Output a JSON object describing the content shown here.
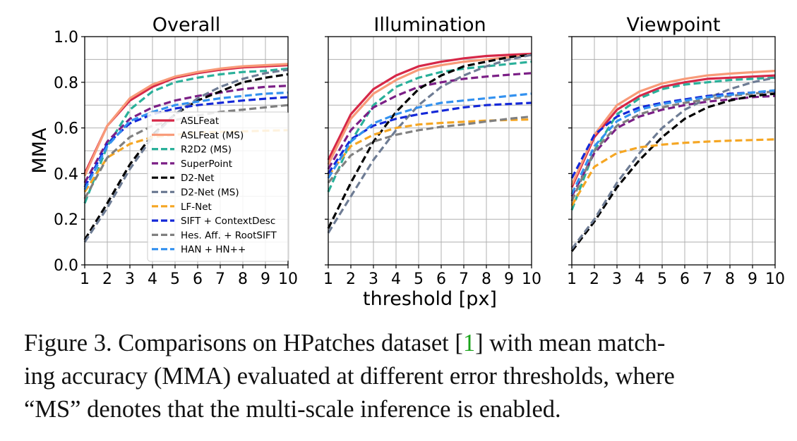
{
  "figure": {
    "xlabel": "threshold [px]",
    "ylabel": "MMA"
  },
  "caption": {
    "line1_a": "Figure 3. Comparisons on HPatches dataset [",
    "cite": "1",
    "line1_b": "] with mean match-",
    "line2": "ing accuracy (MMA) evaluated at different error thresholds, where",
    "line3": "“MS” denotes that the multi-scale inference is enabled."
  },
  "chart_data": [
    {
      "type": "line",
      "title": "Overall",
      "ylim": [
        0,
        1.0
      ],
      "xlim": [
        1,
        10
      ],
      "x": [
        1,
        2,
        3,
        4,
        5,
        6,
        7,
        8,
        9,
        10
      ],
      "xticks": [
        "1",
        "2",
        "3",
        "4",
        "5",
        "6",
        "7",
        "8",
        "9",
        "10"
      ],
      "yticks": [
        "0.0",
        "0.2",
        "0.4",
        "0.6",
        "0.8",
        "1.0"
      ],
      "grid": true,
      "legend_position": "lower-right",
      "series": [
        {
          "name": "ASLFeat",
          "color": "#d62848",
          "dash": "solid",
          "values": [
            0.4,
            0.61,
            0.72,
            0.78,
            0.82,
            0.84,
            0.855,
            0.865,
            0.87,
            0.875
          ]
        },
        {
          "name": "ASLFeat (MS)",
          "color": "#f89a78",
          "dash": "solid",
          "values": [
            0.39,
            0.61,
            0.73,
            0.79,
            0.825,
            0.845,
            0.86,
            0.87,
            0.875,
            0.88
          ]
        },
        {
          "name": "R2D2 (MS)",
          "color": "#2ab09a",
          "dash": "dash",
          "values": [
            0.27,
            0.52,
            0.68,
            0.76,
            0.8,
            0.82,
            0.835,
            0.845,
            0.85,
            0.86
          ]
        },
        {
          "name": "SuperPoint",
          "color": "#7b1f86",
          "dash": "dash",
          "values": [
            0.36,
            0.54,
            0.64,
            0.69,
            0.72,
            0.74,
            0.755,
            0.77,
            0.78,
            0.785
          ]
        },
        {
          "name": "D2-Net",
          "color": "#000000",
          "dash": "dash",
          "values": [
            0.11,
            0.27,
            0.44,
            0.57,
            0.66,
            0.72,
            0.76,
            0.8,
            0.82,
            0.835
          ]
        },
        {
          "name": "D2-Net (MS)",
          "color": "#6e7c94",
          "dash": "dash",
          "values": [
            0.1,
            0.25,
            0.42,
            0.56,
            0.66,
            0.73,
            0.78,
            0.815,
            0.84,
            0.855
          ]
        },
        {
          "name": "LF-Net",
          "color": "#f5a623",
          "dash": "dash",
          "values": [
            0.32,
            0.47,
            0.53,
            0.56,
            0.57,
            0.58,
            0.583,
            0.585,
            0.588,
            0.59
          ]
        },
        {
          "name": "SIFT + ContextDesc",
          "color": "#1428d8",
          "dash": "dash",
          "values": [
            0.34,
            0.53,
            0.62,
            0.66,
            0.685,
            0.7,
            0.71,
            0.72,
            0.728,
            0.735
          ]
        },
        {
          "name": "Hes. Aff. + RootSIFT",
          "color": "#808080",
          "dash": "dash",
          "values": [
            0.29,
            0.47,
            0.56,
            0.61,
            0.635,
            0.655,
            0.67,
            0.68,
            0.69,
            0.7
          ]
        },
        {
          "name": "HAN + HN++",
          "color": "#3391ef",
          "dash": "dash",
          "values": [
            0.33,
            0.52,
            0.63,
            0.67,
            0.7,
            0.715,
            0.73,
            0.74,
            0.75,
            0.755
          ]
        }
      ]
    },
    {
      "type": "line",
      "title": "Illumination",
      "ylim": [
        0,
        1.0
      ],
      "xlim": [
        1,
        10
      ],
      "x": [
        1,
        2,
        3,
        4,
        5,
        6,
        7,
        8,
        9,
        10
      ],
      "xticks": [
        "1",
        "2",
        "3",
        "4",
        "5",
        "6",
        "7",
        "8",
        "9",
        "10"
      ],
      "grid": true,
      "series": [
        {
          "name": "ASLFeat",
          "color": "#d62848",
          "dash": "solid",
          "values": [
            0.46,
            0.66,
            0.77,
            0.83,
            0.87,
            0.89,
            0.905,
            0.915,
            0.92,
            0.925
          ]
        },
        {
          "name": "ASLFeat (MS)",
          "color": "#f89a78",
          "dash": "solid",
          "values": [
            0.44,
            0.64,
            0.75,
            0.81,
            0.855,
            0.875,
            0.89,
            0.9,
            0.91,
            0.92
          ]
        },
        {
          "name": "R2D2 (MS)",
          "color": "#2ab09a",
          "dash": "dash",
          "values": [
            0.32,
            0.54,
            0.7,
            0.78,
            0.82,
            0.845,
            0.86,
            0.87,
            0.88,
            0.89
          ]
        },
        {
          "name": "SuperPoint",
          "color": "#7b1f86",
          "dash": "dash",
          "values": [
            0.42,
            0.59,
            0.69,
            0.74,
            0.78,
            0.8,
            0.815,
            0.825,
            0.833,
            0.84
          ]
        },
        {
          "name": "D2-Net",
          "color": "#000000",
          "dash": "dash",
          "values": [
            0.16,
            0.36,
            0.54,
            0.67,
            0.77,
            0.83,
            0.87,
            0.89,
            0.91,
            0.92
          ]
        },
        {
          "name": "D2-Net (MS)",
          "color": "#6e7c94",
          "dash": "dash",
          "values": [
            0.14,
            0.3,
            0.46,
            0.59,
            0.7,
            0.78,
            0.83,
            0.87,
            0.9,
            0.92
          ]
        },
        {
          "name": "LF-Net",
          "color": "#f5a623",
          "dash": "dash",
          "values": [
            0.39,
            0.52,
            0.57,
            0.6,
            0.615,
            0.622,
            0.627,
            0.632,
            0.635,
            0.637
          ]
        },
        {
          "name": "SIFT + ContextDesc",
          "color": "#1428d8",
          "dash": "dash",
          "values": [
            0.4,
            0.55,
            0.61,
            0.64,
            0.66,
            0.675,
            0.69,
            0.7,
            0.705,
            0.71
          ]
        },
        {
          "name": "Hes. Aff. + RootSIFT",
          "color": "#808080",
          "dash": "dash",
          "values": [
            0.36,
            0.48,
            0.54,
            0.57,
            0.59,
            0.605,
            0.615,
            0.628,
            0.64,
            0.65
          ]
        },
        {
          "name": "HAN + HN++",
          "color": "#3391ef",
          "dash": "dash",
          "values": [
            0.38,
            0.54,
            0.62,
            0.66,
            0.69,
            0.71,
            0.72,
            0.73,
            0.74,
            0.75
          ]
        }
      ]
    },
    {
      "type": "line",
      "title": "Viewpoint",
      "ylim": [
        0,
        1.0
      ],
      "xlim": [
        1,
        10
      ],
      "x": [
        1,
        2,
        3,
        4,
        5,
        6,
        7,
        8,
        9,
        10
      ],
      "xticks": [
        "1",
        "2",
        "3",
        "4",
        "5",
        "6",
        "7",
        "8",
        "9",
        "10"
      ],
      "grid": true,
      "series": [
        {
          "name": "ASLFeat",
          "color": "#d62848",
          "dash": "solid",
          "values": [
            0.34,
            0.56,
            0.68,
            0.74,
            0.78,
            0.8,
            0.815,
            0.82,
            0.825,
            0.83
          ]
        },
        {
          "name": "ASLFeat (MS)",
          "color": "#f89a78",
          "dash": "solid",
          "values": [
            0.35,
            0.57,
            0.7,
            0.76,
            0.795,
            0.815,
            0.83,
            0.838,
            0.844,
            0.85
          ]
        },
        {
          "name": "R2D2 (MS)",
          "color": "#2ab09a",
          "dash": "dash",
          "values": [
            0.24,
            0.5,
            0.66,
            0.73,
            0.77,
            0.79,
            0.8,
            0.81,
            0.815,
            0.82
          ]
        },
        {
          "name": "SuperPoint",
          "color": "#7b1f86",
          "dash": "dash",
          "values": [
            0.3,
            0.49,
            0.6,
            0.65,
            0.68,
            0.7,
            0.715,
            0.725,
            0.735,
            0.74
          ]
        },
        {
          "name": "D2-Net",
          "color": "#000000",
          "dash": "dash",
          "values": [
            0.06,
            0.19,
            0.34,
            0.46,
            0.56,
            0.64,
            0.69,
            0.72,
            0.74,
            0.75
          ]
        },
        {
          "name": "D2-Net (MS)",
          "color": "#6e7c94",
          "dash": "dash",
          "values": [
            0.07,
            0.2,
            0.36,
            0.49,
            0.6,
            0.68,
            0.73,
            0.77,
            0.8,
            0.82
          ]
        },
        {
          "name": "LF-Net",
          "color": "#f5a623",
          "dash": "dash",
          "values": [
            0.26,
            0.43,
            0.49,
            0.515,
            0.527,
            0.535,
            0.54,
            0.544,
            0.547,
            0.55
          ]
        },
        {
          "name": "SIFT + ContextDesc",
          "color": "#1428d8",
          "dash": "dash",
          "values": [
            0.38,
            0.57,
            0.65,
            0.69,
            0.71,
            0.725,
            0.74,
            0.75,
            0.755,
            0.76
          ]
        },
        {
          "name": "Hes. Aff. + RootSIFT",
          "color": "#808080",
          "dash": "dash",
          "values": [
            0.28,
            0.5,
            0.61,
            0.66,
            0.69,
            0.71,
            0.725,
            0.74,
            0.75,
            0.76
          ]
        },
        {
          "name": "HAN + HN++",
          "color": "#3391ef",
          "dash": "dash",
          "values": [
            0.31,
            0.52,
            0.63,
            0.68,
            0.705,
            0.72,
            0.735,
            0.745,
            0.755,
            0.765
          ]
        }
      ]
    }
  ]
}
